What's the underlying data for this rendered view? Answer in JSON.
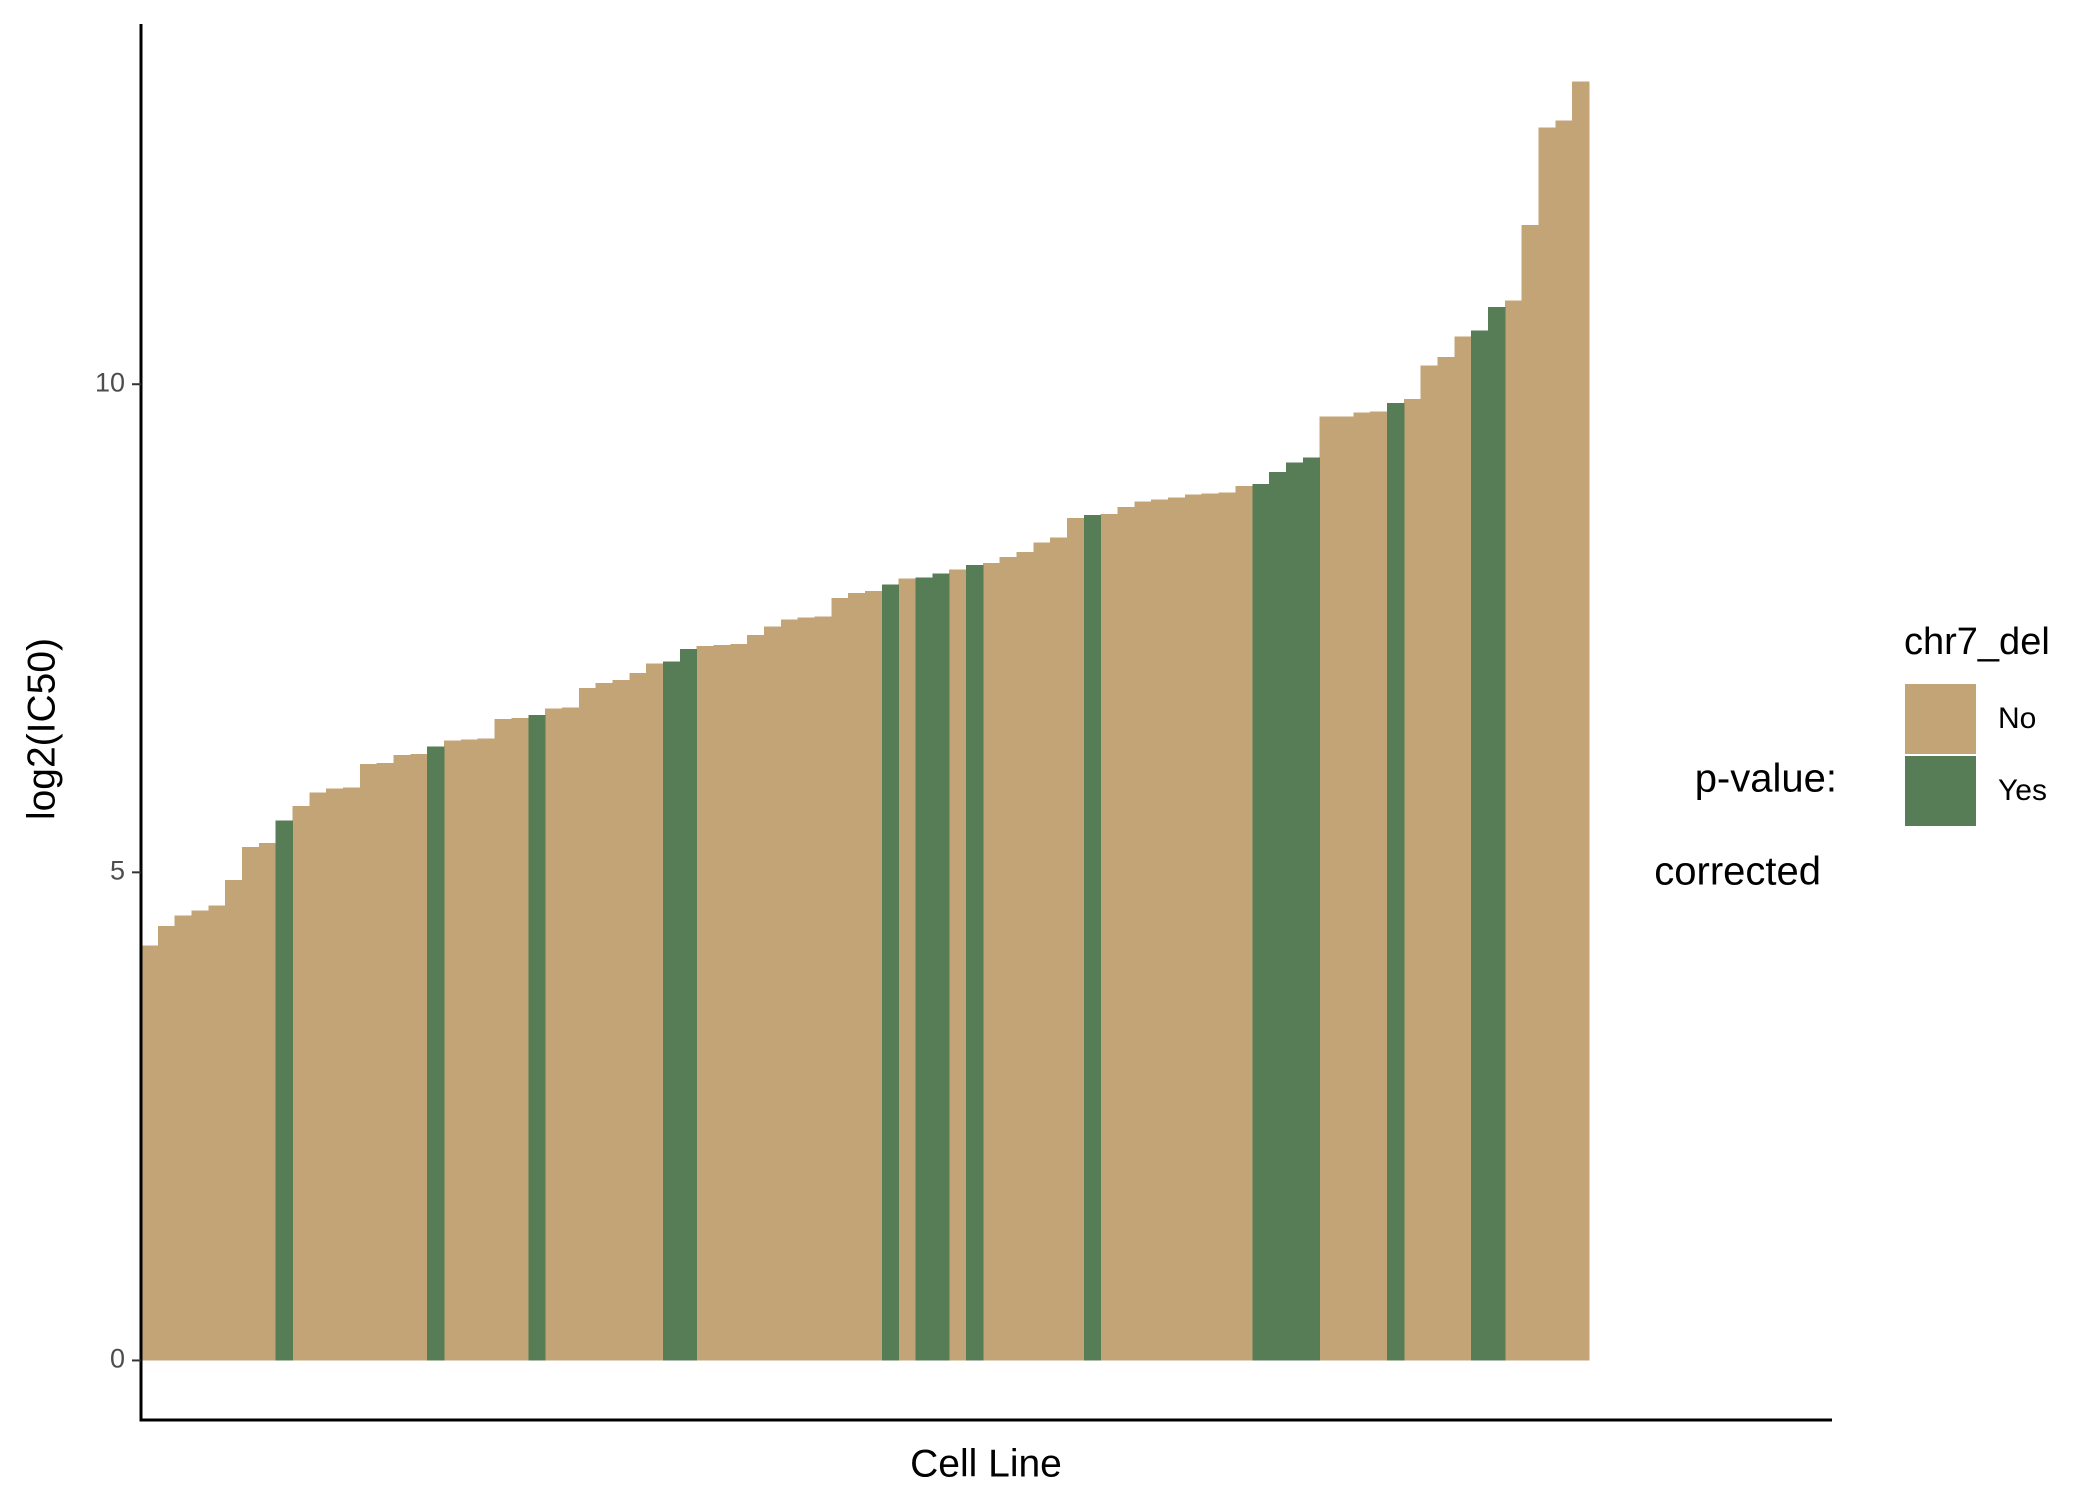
{
  "chart_data": {
    "type": "bar",
    "x_label": "Cell Line",
    "y_label": "log2(IC50)",
    "legend_title": "chr7_del",
    "annotations": [
      "p-value:",
      "corrected"
    ],
    "ylim": [
      -0.61,
      13.69
    ],
    "yticks": [
      0,
      5,
      10
    ],
    "grid": false,
    "legend_position": "right",
    "series": [
      {
        "name": "No",
        "color": "#c2a477",
        "values": [
          4.25,
          4.45,
          4.56,
          4.61,
          4.66,
          4.92,
          5.26,
          5.3,
          null,
          5.68,
          5.82,
          5.86,
          5.87,
          6.11,
          6.12,
          6.2,
          6.21,
          null,
          6.35,
          6.36,
          6.37,
          6.57,
          6.58,
          null,
          6.68,
          6.69,
          6.89,
          6.94,
          6.97,
          7.04,
          7.14,
          null,
          null,
          7.32,
          7.33,
          7.34,
          7.43,
          7.52,
          7.59,
          7.61,
          7.62,
          7.81,
          7.86,
          7.88,
          null,
          8.01,
          null,
          null,
          8.1,
          null,
          8.17,
          8.23,
          8.28,
          8.38,
          8.43,
          8.63,
          null,
          8.67,
          8.74,
          8.8,
          8.82,
          8.84,
          8.87,
          8.88,
          8.89,
          8.96,
          null,
          null,
          null,
          null,
          9.67,
          9.67,
          9.71,
          9.72,
          null,
          9.85,
          10.19,
          10.28,
          10.49,
          null,
          null,
          10.86,
          11.63,
          12.63,
          12.7,
          13.1
        ]
      },
      {
        "name": "Yes",
        "color": "#577d57",
        "values": [
          null,
          null,
          null,
          null,
          null,
          null,
          null,
          null,
          5.53,
          null,
          null,
          null,
          null,
          null,
          null,
          null,
          null,
          6.29,
          null,
          null,
          null,
          null,
          null,
          6.61,
          null,
          null,
          null,
          null,
          null,
          null,
          null,
          7.16,
          7.29,
          null,
          null,
          null,
          null,
          null,
          null,
          null,
          null,
          null,
          null,
          null,
          7.95,
          null,
          8.02,
          8.06,
          null,
          8.15,
          null,
          null,
          null,
          null,
          null,
          null,
          8.66,
          null,
          null,
          null,
          null,
          null,
          null,
          null,
          null,
          null,
          8.98,
          9.1,
          9.2,
          9.25,
          null,
          null,
          null,
          null,
          9.81,
          null,
          null,
          null,
          null,
          10.55,
          10.79,
          null,
          null,
          null,
          null,
          null
        ]
      }
    ]
  }
}
